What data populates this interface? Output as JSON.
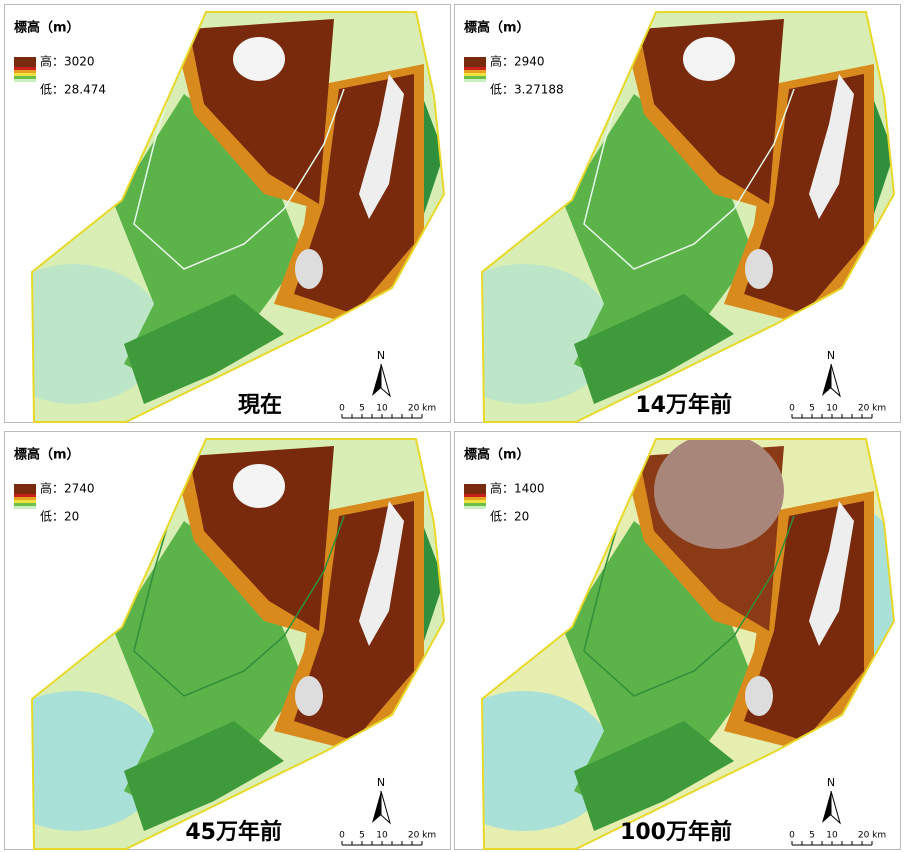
{
  "panels": [
    {
      "legend_title": "標高（m）",
      "high_label": "高：3020",
      "low_label": "低：28.474",
      "period": "現在"
    },
    {
      "legend_title": "標高（m）",
      "high_label": "高：2940",
      "low_label": "低：3.27188",
      "period": "14万年前"
    },
    {
      "legend_title": "標高（m）",
      "high_label": "高：2740",
      "low_label": "低：20",
      "period": "45万年前"
    },
    {
      "legend_title": "標高（m）",
      "high_label": "高：1400",
      "low_label": "低：20",
      "period": "100万年前"
    }
  ],
  "scale_bar": {
    "north": "N",
    "labels": [
      "0",
      "5",
      "10",
      "20 km"
    ]
  }
}
